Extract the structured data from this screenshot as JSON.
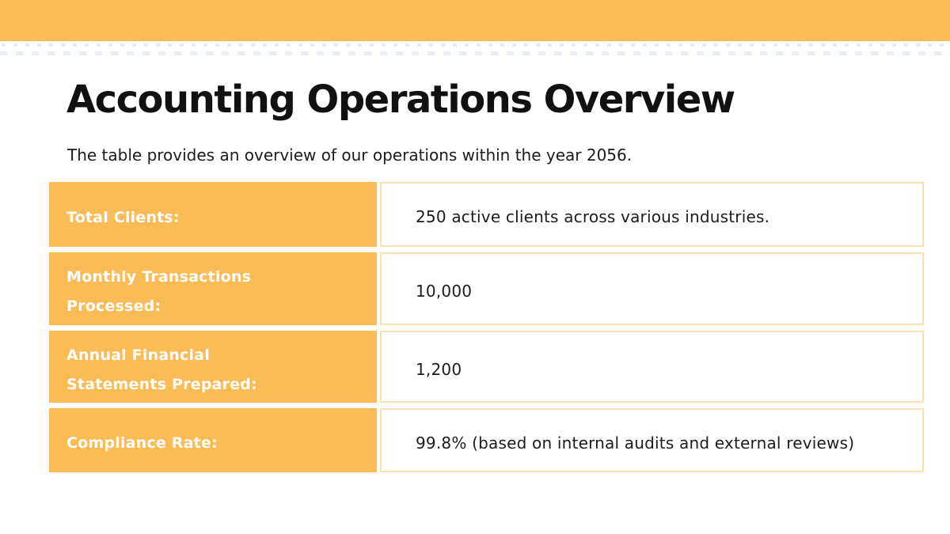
{
  "page": {
    "title": "Accounting Operations Overview",
    "subtitle": "The table provides an overview of our operations within the year 2056."
  },
  "table": {
    "rows": [
      {
        "label": "Total Clients:",
        "value": "250 active clients across various industries."
      },
      {
        "label": "Monthly Transactions Processed:",
        "value": "10,000"
      },
      {
        "label": "Annual Financial Statements Prepared:",
        "value": "1,200"
      },
      {
        "label": "Compliance Rate:",
        "value": "99.8% (based on internal audits and external reviews)"
      }
    ]
  },
  "chart_data": {
    "type": "table",
    "title": "Accounting Operations Overview",
    "categories": [
      "Total Clients",
      "Monthly Transactions Processed",
      "Annual Financial Statements Prepared",
      "Compliance Rate"
    ],
    "values": [
      "250 active clients across various industries.",
      "10,000",
      "1,200",
      "99.8% (based on internal audits and external reviews)"
    ],
    "year": "2056"
  },
  "colors": {
    "accent_orange": "#FBBC55",
    "cell_border_cream": "#F7E2B3",
    "title_black": "#111111",
    "body_text": "#1C1C1C",
    "label_text": "#FFFFFF",
    "texture_gray_blue": "#E4ECF1"
  }
}
